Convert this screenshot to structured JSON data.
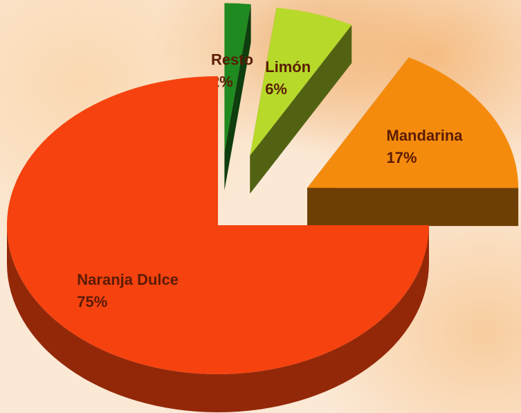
{
  "chart_data": {
    "type": "pie",
    "categories": [
      "Resto",
      "Limón",
      "Mandarina",
      "Naranja Dulce"
    ],
    "values": [
      2,
      6,
      17,
      75
    ],
    "value_labels": [
      "2%",
      "6%",
      "17%",
      "75%"
    ],
    "colors": [
      "#1f8a1f",
      "#b7d92a",
      "#f58b0c",
      "#f5420f"
    ]
  }
}
